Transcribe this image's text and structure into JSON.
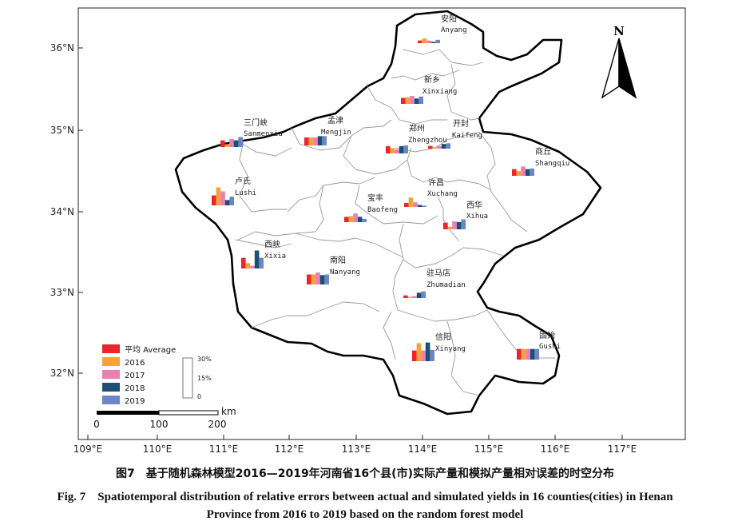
{
  "figure": {
    "caption_cn": "图7　基于随机森林模型2016—2019年河南省16个县(市)实际产量和模拟产量相对误差的时空分布",
    "caption_en_line1": "Fig. 7　Spatiotemporal distribution of relative errors between actual and simulated yields in 16 counties(cities) in Henan",
    "caption_en_line2": "Province from 2016 to 2019 based on the random forest model"
  },
  "axes": {
    "lon_labels": [
      "109°E",
      "110°E",
      "111°E",
      "112°E",
      "113°E",
      "114°E",
      "115°E",
      "116°E",
      "117°E"
    ],
    "lat_labels": [
      "36°N",
      "35°N",
      "34°N",
      "33°N",
      "32°N"
    ]
  },
  "north_arrow": {
    "label": "N"
  },
  "legend": {
    "items": [
      {
        "label": "平均 Average",
        "color": "#e8262b"
      },
      {
        "label": "2016",
        "color": "#f7a13a"
      },
      {
        "label": "2017",
        "color": "#ea7fb4"
      },
      {
        "label": "2018",
        "color": "#1d4f74"
      },
      {
        "label": "2019",
        "color": "#6b86c4"
      }
    ],
    "bar_scale": {
      "max_label": "30%",
      "mid_label": "15%",
      "min_label": "0",
      "max_value": 30
    }
  },
  "scale_bar": {
    "unit": "km",
    "ticks": [
      "0",
      "100",
      "200"
    ]
  },
  "chart_data": {
    "type": "bar",
    "series_names": [
      "平均 Average",
      "2016",
      "2017",
      "2018",
      "2019"
    ],
    "unit": "%",
    "sites": [
      {
        "name_cn": "安阳",
        "name_en": "Anyang",
        "values": [
          2,
          3.5,
          2,
          1,
          2.5
        ]
      },
      {
        "name_cn": "新乡",
        "name_en": "Xinxiang",
        "values": [
          4.5,
          5,
          6,
          4,
          5.5
        ]
      },
      {
        "name_cn": "三门峡",
        "name_en": "Sanmenxia",
        "values": [
          5,
          2,
          6,
          5,
          7.5
        ]
      },
      {
        "name_cn": "孟津",
        "name_en": "Mengjin",
        "values": [
          6,
          6,
          6,
          7,
          7
        ]
      },
      {
        "name_cn": "郑州",
        "name_en": "Zhengzhou",
        "values": [
          5.5,
          4,
          3,
          5.5,
          6
        ]
      },
      {
        "name_cn": "开封",
        "name_en": "Kaifeng",
        "values": [
          2,
          1,
          2,
          3.5,
          4
        ]
      },
      {
        "name_cn": "商丘",
        "name_en": "Shangqiu",
        "values": [
          5,
          3.5,
          7,
          5,
          5.5
        ]
      },
      {
        "name_cn": "卢氏",
        "name_en": "Lushi",
        "values": [
          7.5,
          13.5,
          10.5,
          4,
          6.5
        ]
      },
      {
        "name_cn": "宝丰",
        "name_en": "Baofeng",
        "values": [
          4,
          4.5,
          6.5,
          4,
          2.5
        ]
      },
      {
        "name_cn": "许昌",
        "name_en": "Xuchang",
        "values": [
          3,
          7,
          3.5,
          1.5,
          1
        ]
      },
      {
        "name_cn": "西华",
        "name_en": "Xihua",
        "values": [
          5,
          2,
          6,
          5.5,
          7.5
        ]
      },
      {
        "name_cn": "西峡",
        "name_en": "Xixia",
        "values": [
          8,
          4,
          2,
          13.5,
          8
        ]
      },
      {
        "name_cn": "南阳",
        "name_en": "Nanyang",
        "values": [
          7.5,
          7.5,
          9,
          7,
          7.5
        ]
      },
      {
        "name_cn": "驻马店",
        "name_en": "Zhumadian",
        "values": [
          2,
          1,
          1.5,
          4,
          5
        ]
      },
      {
        "name_cn": "信阳",
        "name_en": "Xinyang",
        "values": [
          8,
          13.5,
          8,
          14,
          8.5
        ]
      },
      {
        "name_cn": "固始",
        "name_en": "Gushi",
        "values": [
          8,
          8,
          8,
          8,
          8
        ]
      }
    ]
  }
}
